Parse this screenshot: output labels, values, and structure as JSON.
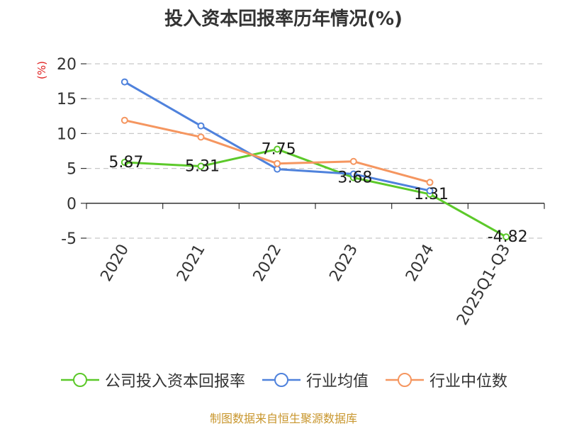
{
  "title": "投入资本回报率历年情况(%)",
  "unit_label": "(%)",
  "source": "制图数据来自恒生聚源数据库",
  "chart_data": {
    "type": "line",
    "title": "投入资本回报率历年情况(%)",
    "xlabel": "",
    "ylabel": "(%)",
    "categories": [
      "2020",
      "2021",
      "2022",
      "2023",
      "2024",
      "2025Q1-Q3"
    ],
    "ylim": [
      -5,
      20
    ],
    "yticks": [
      -5,
      0,
      5,
      10,
      15,
      20
    ],
    "grid": true,
    "legend_position": "bottom",
    "series": [
      {
        "name": "公司投入资本回报率",
        "color": "#5cc92a",
        "values": [
          5.87,
          5.31,
          7.75,
          3.68,
          1.31,
          -4.82
        ],
        "labels": [
          "5.87",
          "5.31",
          "7.75",
          "3.68",
          "1.31",
          "-4.82"
        ]
      },
      {
        "name": "行业均值",
        "color": "#4f82dc",
        "values": [
          17.4,
          11.1,
          4.9,
          4.2,
          1.8,
          null
        ]
      },
      {
        "name": "行业中位数",
        "color": "#f59660",
        "values": [
          11.9,
          9.5,
          5.7,
          6.0,
          3.0,
          null
        ]
      }
    ]
  }
}
